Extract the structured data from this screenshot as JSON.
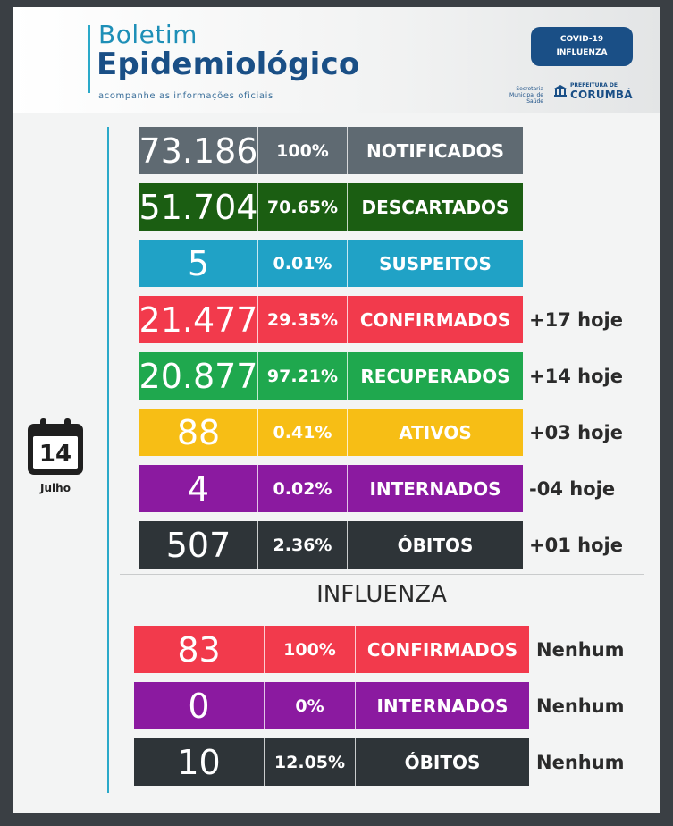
{
  "header": {
    "title_line1": "Boletim",
    "title_line2": "Epidemiológico",
    "subtitle": "acompanhe as informações oficiais",
    "badge_line1": "COVID-19",
    "badge_line2": "INFLUENZA",
    "secretaria": "Secretaria Municipal de Saúde",
    "prefeitura_label": "PREFEITURA DE",
    "prefeitura_name": "CORUMBÁ"
  },
  "date": {
    "day": "14",
    "month": "Julho"
  },
  "covid": [
    {
      "value": "73.186",
      "percent": "100%",
      "label": "NOTIFICADOS",
      "today": "",
      "color": "#5f6a72"
    },
    {
      "value": "51.704",
      "percent": "70.65%",
      "label": "DESCARTADOS",
      "today": "",
      "color": "#1b5e12"
    },
    {
      "value": "5",
      "percent": "0.01%",
      "label": "SUSPEITOS",
      "today": "",
      "color": "#20a2c6"
    },
    {
      "value": "21.477",
      "percent": "29.35%",
      "label": "CONFIRMADOS",
      "today": "+17 hoje",
      "color": "#f23a4c"
    },
    {
      "value": "20.877",
      "percent": "97.21%",
      "label": "RECUPERADOS",
      "today": "+14 hoje",
      "color": "#1fa84e"
    },
    {
      "value": "88",
      "percent": "0.41%",
      "label": "ATIVOS",
      "today": "+03 hoje",
      "color": "#f7be15"
    },
    {
      "value": "4",
      "percent": "0.02%",
      "label": "INTERNADOS",
      "today": "-04 hoje",
      "color": "#8b1aa0"
    },
    {
      "value": "507",
      "percent": "2.36%",
      "label": "ÓBITOS",
      "today": "+01 hoje",
      "color": "#2e3438"
    }
  ],
  "influenza": {
    "title": "INFLUENZA",
    "rows": [
      {
        "value": "83",
        "percent": "100%",
        "label": "CONFIRMADOS",
        "today": "Nenhum",
        "color": "#f23a4c"
      },
      {
        "value": "0",
        "percent": "0%",
        "label": "INTERNADOS",
        "today": "Nenhum",
        "color": "#8b1aa0"
      },
      {
        "value": "10",
        "percent": "12.05%",
        "label": "ÓBITOS",
        "today": "Nenhum",
        "color": "#2e3438"
      }
    ]
  }
}
